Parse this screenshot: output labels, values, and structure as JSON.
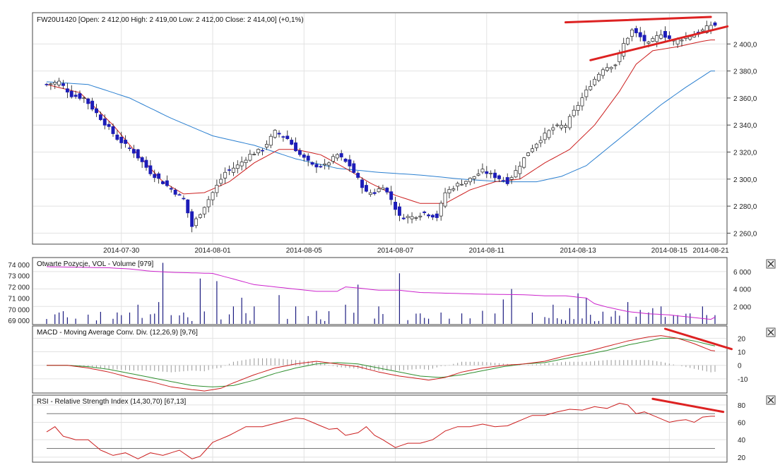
{
  "chart_data": [
    {
      "type": "candlestick",
      "title": "FW20U1420 [Open: 2 412,00  High: 2 419,00  Low: 2 412,00  Close: 2 414,00] (+0,1%)",
      "x_labels": [
        "2014-07-30",
        "2014-08-01",
        "2014-08-05",
        "2014-08-07",
        "2014-08-11",
        "2014-08-13",
        "2014-08-15",
        "2014-08-21"
      ],
      "y_ticks": [
        "2 260,0",
        "2 280,0",
        "2 300,0",
        "2 320,0",
        "2 340,0",
        "2 360,0",
        "2 380,0",
        "2 400,0"
      ],
      "ylim": [
        2255,
        2420
      ],
      "colors": {
        "down_candle": "#1c1cb8",
        "up_candle": "#ffffff",
        "ma_short": "#cc1f1f",
        "ma_long": "#2a7fd0",
        "trendline": "#dd2222"
      },
      "close_anchors": [
        [
          0,
          2370
        ],
        [
          3,
          2372
        ],
        [
          6,
          2362
        ],
        [
          9,
          2360
        ],
        [
          13,
          2345
        ],
        [
          17,
          2330
        ],
        [
          21,
          2320
        ],
        [
          25,
          2305
        ],
        [
          29,
          2295
        ],
        [
          33,
          2285
        ],
        [
          35,
          2265
        ],
        [
          37,
          2275
        ],
        [
          40,
          2290
        ],
        [
          43,
          2305
        ],
        [
          46,
          2310
        ],
        [
          49,
          2318
        ],
        [
          52,
          2322
        ],
        [
          55,
          2335
        ],
        [
          58,
          2330
        ],
        [
          61,
          2318
        ],
        [
          64,
          2310
        ],
        [
          67,
          2310
        ],
        [
          70,
          2318
        ],
        [
          73,
          2310
        ],
        [
          75,
          2300
        ],
        [
          77,
          2290
        ],
        [
          79,
          2290
        ],
        [
          81,
          2295
        ],
        [
          83,
          2285
        ],
        [
          85,
          2272
        ],
        [
          88,
          2272
        ],
        [
          91,
          2275
        ],
        [
          94,
          2272
        ],
        [
          96,
          2290
        ],
        [
          99,
          2296
        ],
        [
          102,
          2300
        ],
        [
          105,
          2306
        ],
        [
          108,
          2302
        ],
        [
          111,
          2298
        ],
        [
          113,
          2306
        ],
        [
          116,
          2320
        ],
        [
          119,
          2330
        ],
        [
          122,
          2338
        ],
        [
          125,
          2340
        ],
        [
          128,
          2355
        ],
        [
          131,
          2370
        ],
        [
          134,
          2382
        ],
        [
          137,
          2385
        ],
        [
          139,
          2400
        ],
        [
          141,
          2410
        ],
        [
          143,
          2405
        ],
        [
          145,
          2400
        ],
        [
          148,
          2408
        ],
        [
          151,
          2402
        ],
        [
          154,
          2405
        ],
        [
          157,
          2408
        ],
        [
          160,
          2414
        ]
      ],
      "ma_short_anchors": [
        [
          0,
          2370
        ],
        [
          8,
          2364
        ],
        [
          16,
          2340
        ],
        [
          22,
          2318
        ],
        [
          28,
          2298
        ],
        [
          33,
          2289
        ],
        [
          38,
          2290
        ],
        [
          44,
          2298
        ],
        [
          50,
          2312
        ],
        [
          56,
          2322
        ],
        [
          60,
          2322
        ],
        [
          66,
          2318
        ],
        [
          72,
          2308
        ],
        [
          78,
          2297
        ],
        [
          84,
          2288
        ],
        [
          90,
          2282
        ],
        [
          96,
          2282
        ],
        [
          102,
          2292
        ],
        [
          108,
          2298
        ],
        [
          114,
          2300
        ],
        [
          120,
          2312
        ],
        [
          126,
          2322
        ],
        [
          132,
          2340
        ],
        [
          138,
          2365
        ],
        [
          142,
          2385
        ],
        [
          146,
          2395
        ],
        [
          152,
          2398
        ],
        [
          158,
          2402
        ],
        [
          160,
          2403
        ]
      ],
      "ma_long_anchors": [
        [
          0,
          2372
        ],
        [
          10,
          2370
        ],
        [
          20,
          2360
        ],
        [
          30,
          2345
        ],
        [
          40,
          2332
        ],
        [
          50,
          2325
        ],
        [
          60,
          2315
        ],
        [
          70,
          2308
        ],
        [
          80,
          2305
        ],
        [
          90,
          2303
        ],
        [
          100,
          2300
        ],
        [
          110,
          2298
        ],
        [
          118,
          2298
        ],
        [
          124,
          2302
        ],
        [
          130,
          2310
        ],
        [
          136,
          2325
        ],
        [
          142,
          2340
        ],
        [
          148,
          2355
        ],
        [
          154,
          2368
        ],
        [
          160,
          2380
        ]
      ],
      "trendlines": [
        {
          "from": [
            125,
            2416
          ],
          "to": [
            160,
            2420
          ]
        },
        {
          "from": [
            131,
            2388
          ],
          "to": [
            164,
            2413
          ]
        }
      ]
    },
    {
      "type": "bar+line",
      "title": "Otwarte Pozycje, VOL - Volume [979]",
      "left_ticks": [
        "74 000",
        "73 000",
        "72 000",
        "71 000",
        "70 000",
        "69 000"
      ],
      "right_ticks": [
        "6 000",
        "4 000",
        "2 000"
      ],
      "volume_ylim": [
        0,
        7200
      ],
      "open_interest_ylim": [
        68700,
        74300
      ],
      "colors": {
        "volume": "#1c1c80",
        "open_interest": "#cc22cc"
      },
      "open_interest_anchors": [
        [
          0,
          73800
        ],
        [
          15,
          73700
        ],
        [
          20,
          73600
        ],
        [
          25,
          73400
        ],
        [
          30,
          73300
        ],
        [
          40,
          73200
        ],
        [
          45,
          72700
        ],
        [
          50,
          72200
        ],
        [
          55,
          72000
        ],
        [
          60,
          71800
        ],
        [
          65,
          71600
        ],
        [
          70,
          71600
        ],
        [
          72,
          72000
        ],
        [
          75,
          71900
        ],
        [
          80,
          71700
        ],
        [
          85,
          71700
        ],
        [
          90,
          71500
        ],
        [
          100,
          71400
        ],
        [
          105,
          71350
        ],
        [
          115,
          71300
        ],
        [
          120,
          71200
        ],
        [
          125,
          71200
        ],
        [
          130,
          71000
        ],
        [
          132,
          70500
        ],
        [
          135,
          70200
        ],
        [
          140,
          69800
        ],
        [
          145,
          69600
        ],
        [
          150,
          69500
        ],
        [
          155,
          69300
        ],
        [
          160,
          69100
        ],
        [
          161,
          69300
        ]
      ],
      "volume_bars": [
        {
          "i": 3,
          "v": 1300
        },
        {
          "i": 7,
          "v": 600
        },
        {
          "i": 12,
          "v": 400
        },
        {
          "i": 18,
          "v": 1000
        },
        {
          "i": 20,
          "v": 1300
        },
        {
          "i": 22,
          "v": 2200
        },
        {
          "i": 25,
          "v": 1100
        },
        {
          "i": 27,
          "v": 2500
        },
        {
          "i": 28,
          "v": 7000
        },
        {
          "i": 30,
          "v": 1000
        },
        {
          "i": 33,
          "v": 1300
        },
        {
          "i": 37,
          "v": 5200
        },
        {
          "i": 41,
          "v": 4900
        },
        {
          "i": 45,
          "v": 2000
        },
        {
          "i": 47,
          "v": 3000
        },
        {
          "i": 50,
          "v": 2000
        },
        {
          "i": 56,
          "v": 3300
        },
        {
          "i": 60,
          "v": 2000
        },
        {
          "i": 65,
          "v": 1500
        },
        {
          "i": 72,
          "v": 2200
        },
        {
          "i": 75,
          "v": 4500
        },
        {
          "i": 80,
          "v": 2000
        },
        {
          "i": 85,
          "v": 5800
        },
        {
          "i": 90,
          "v": 1200
        },
        {
          "i": 95,
          "v": 1300
        },
        {
          "i": 100,
          "v": 1200
        },
        {
          "i": 105,
          "v": 1500
        },
        {
          "i": 110,
          "v": 2800
        },
        {
          "i": 112,
          "v": 4000
        },
        {
          "i": 117,
          "v": 1300
        },
        {
          "i": 122,
          "v": 2200
        },
        {
          "i": 126,
          "v": 1800
        },
        {
          "i": 128,
          "v": 3500
        },
        {
          "i": 130,
          "v": 3000
        },
        {
          "i": 134,
          "v": 1400
        },
        {
          "i": 137,
          "v": 1500
        },
        {
          "i": 140,
          "v": 2500
        },
        {
          "i": 143,
          "v": 1600
        },
        {
          "i": 146,
          "v": 1800
        },
        {
          "i": 148,
          "v": 2000
        },
        {
          "i": 152,
          "v": 1000
        },
        {
          "i": 155,
          "v": 1200
        },
        {
          "i": 158,
          "v": 2000
        },
        {
          "i": 161,
          "v": 1000
        }
      ]
    },
    {
      "type": "line+histogram",
      "title": "MACD - Moving Average Conv. Div. (12,26,9) [9,76]",
      "right_ticks": [
        "20",
        "10",
        "0",
        "-10"
      ],
      "ylim": [
        -20,
        27
      ],
      "colors": {
        "macd": "#cc1f1f",
        "signal": "#2f8f2f",
        "histogram": "#999999",
        "trendline": "#dd2222"
      },
      "macd_anchors": [
        [
          0,
          0
        ],
        [
          5,
          0
        ],
        [
          10,
          -2
        ],
        [
          15,
          -5
        ],
        [
          20,
          -9
        ],
        [
          25,
          -12
        ],
        [
          30,
          -16
        ],
        [
          35,
          -18
        ],
        [
          38,
          -19
        ],
        [
          42,
          -17
        ],
        [
          45,
          -13
        ],
        [
          50,
          -7
        ],
        [
          55,
          -2
        ],
        [
          60,
          1
        ],
        [
          65,
          3
        ],
        [
          70,
          1
        ],
        [
          75,
          -1
        ],
        [
          80,
          -5
        ],
        [
          85,
          -8
        ],
        [
          90,
          -10
        ],
        [
          92,
          -11
        ],
        [
          96,
          -9
        ],
        [
          100,
          -5
        ],
        [
          105,
          -2
        ],
        [
          110,
          0
        ],
        [
          115,
          1
        ],
        [
          120,
          3
        ],
        [
          125,
          7
        ],
        [
          130,
          10
        ],
        [
          135,
          14
        ],
        [
          140,
          18
        ],
        [
          145,
          21
        ],
        [
          148,
          22
        ],
        [
          152,
          20
        ],
        [
          156,
          16
        ],
        [
          160,
          11
        ],
        [
          163,
          10
        ]
      ],
      "signal_anchors": [
        [
          0,
          0
        ],
        [
          5,
          0
        ],
        [
          10,
          -1
        ],
        [
          15,
          -3
        ],
        [
          20,
          -6
        ],
        [
          25,
          -9
        ],
        [
          30,
          -12
        ],
        [
          35,
          -15
        ],
        [
          40,
          -16
        ],
        [
          45,
          -15
        ],
        [
          50,
          -11
        ],
        [
          55,
          -6
        ],
        [
          60,
          -2
        ],
        [
          65,
          1
        ],
        [
          70,
          2
        ],
        [
          75,
          1
        ],
        [
          80,
          -2
        ],
        [
          85,
          -5
        ],
        [
          90,
          -8
        ],
        [
          95,
          -9
        ],
        [
          100,
          -7
        ],
        [
          105,
          -4
        ],
        [
          110,
          -1
        ],
        [
          115,
          1
        ],
        [
          120,
          2
        ],
        [
          125,
          5
        ],
        [
          130,
          8
        ],
        [
          135,
          11
        ],
        [
          140,
          15
        ],
        [
          145,
          18
        ],
        [
          148,
          20
        ],
        [
          152,
          20
        ],
        [
          156,
          18
        ],
        [
          160,
          15
        ],
        [
          163,
          13
        ]
      ],
      "trendlines": [
        {
          "from": [
            149,
            27
          ],
          "to": [
            165,
            12
          ]
        }
      ]
    },
    {
      "type": "line",
      "title": "RSI - Relative Strength Index (14,30,70) [67,13]",
      "right_ticks": [
        "80",
        "60",
        "40",
        "20"
      ],
      "ylim": [
        15,
        88
      ],
      "reference_lines": [
        30,
        70
      ],
      "colors": {
        "rsi": "#cc1f1f",
        "reference": "#777777",
        "trendline": "#dd2222"
      },
      "rsi_anchors": [
        [
          0,
          49
        ],
        [
          2,
          55
        ],
        [
          4,
          44
        ],
        [
          7,
          40
        ],
        [
          10,
          40
        ],
        [
          13,
          28
        ],
        [
          16,
          22
        ],
        [
          19,
          25
        ],
        [
          22,
          18
        ],
        [
          25,
          25
        ],
        [
          28,
          22
        ],
        [
          32,
          28
        ],
        [
          35,
          18
        ],
        [
          37,
          21
        ],
        [
          40,
          37
        ],
        [
          44,
          45
        ],
        [
          48,
          55
        ],
        [
          52,
          55
        ],
        [
          56,
          60
        ],
        [
          60,
          65
        ],
        [
          62,
          64
        ],
        [
          65,
          58
        ],
        [
          68,
          52
        ],
        [
          70,
          53
        ],
        [
          72,
          45
        ],
        [
          75,
          48
        ],
        [
          77,
          55
        ],
        [
          79,
          45
        ],
        [
          81,
          40
        ],
        [
          84,
          31
        ],
        [
          87,
          36
        ],
        [
          90,
          36
        ],
        [
          93,
          40
        ],
        [
          96,
          50
        ],
        [
          99,
          55
        ],
        [
          102,
          55
        ],
        [
          105,
          58
        ],
        [
          108,
          55
        ],
        [
          111,
          56
        ],
        [
          114,
          62
        ],
        [
          117,
          68
        ],
        [
          120,
          68
        ],
        [
          123,
          72
        ],
        [
          126,
          75
        ],
        [
          129,
          74
        ],
        [
          132,
          78
        ],
        [
          135,
          76
        ],
        [
          138,
          82
        ],
        [
          140,
          80
        ],
        [
          142,
          70
        ],
        [
          144,
          72
        ],
        [
          146,
          68
        ],
        [
          148,
          64
        ],
        [
          150,
          60
        ],
        [
          152,
          62
        ],
        [
          154,
          63
        ],
        [
          156,
          60
        ],
        [
          158,
          66
        ],
        [
          160,
          67
        ]
      ],
      "trendlines": [
        {
          "from": [
            146,
            87
          ],
          "to": [
            163,
            72
          ]
        }
      ]
    }
  ],
  "panel_close_icons": [
    "close-icon",
    "close-icon",
    "close-icon"
  ]
}
